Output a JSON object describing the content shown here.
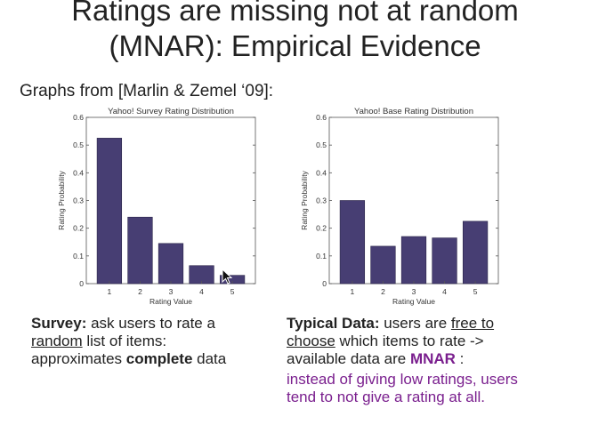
{
  "slide": {
    "title_line1": "Ratings are missing not at random",
    "title_line2": "(MNAR): Empirical Evidence",
    "subtitle": "Graphs from [Marlin & Zemel ‘09]:"
  },
  "chart_data": [
    {
      "type": "bar",
      "title": "Yahoo! Survey Rating Distribution",
      "xlabel": "Rating Value",
      "ylabel": "Rating Probability",
      "categories": [
        "1",
        "2",
        "3",
        "4",
        "5"
      ],
      "values": [
        0.525,
        0.24,
        0.145,
        0.065,
        0.03
      ],
      "ylim": [
        0,
        0.6
      ],
      "yticks": [
        "0",
        "0.1",
        "0.2",
        "0.3",
        "0.4",
        "0.5",
        "0.6"
      ],
      "bar_color": "#473e73",
      "grid": false,
      "legend": "none"
    },
    {
      "type": "bar",
      "title": "Yahoo! Base Rating Distribution",
      "xlabel": "Rating Value",
      "ylabel": "Rating Probability",
      "categories": [
        "1",
        "2",
        "3",
        "4",
        "5"
      ],
      "values": [
        0.3,
        0.135,
        0.17,
        0.165,
        0.225
      ],
      "ylim": [
        0,
        0.6
      ],
      "yticks": [
        "0",
        "0.1",
        "0.2",
        "0.3",
        "0.4",
        "0.5",
        "0.6"
      ],
      "bar_color": "#473e73",
      "grid": false,
      "legend": "none"
    }
  ],
  "captions": {
    "left": {
      "bold1": "Survey:",
      "text1": " ask users to rate  a",
      "under1": "random",
      "text2": " list of items:",
      "text3": "approximates ",
      "bold2": "complete",
      "text4": " data"
    },
    "right": {
      "bold1": "Typical Data:",
      "text1": " users are ",
      "under1": "free to",
      "under2": "choose",
      "text2": " which items to rate ->",
      "text3": "available data are ",
      "mnar": "MNAR",
      "text4": " :",
      "purple1": " instead of giving low ratings, users",
      "purple2": "tend to not give a rating at all."
    }
  }
}
